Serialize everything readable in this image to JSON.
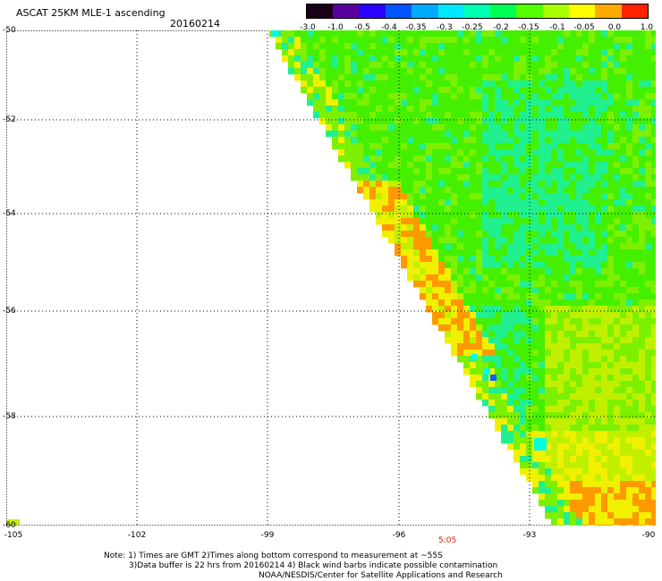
{
  "title": "ASCAT 25KM MLE-1 ascending",
  "date": "20160214",
  "colorbar": {
    "labels": [
      "-3.0",
      "-1.0",
      "-0.5",
      "-0.4",
      "-0.35",
      "-0.3",
      "-0.25",
      "-0.2",
      "-0.15",
      "-0.1",
      "-0.05",
      "0.0",
      "1.0"
    ],
    "colors": [
      "#1a0016",
      "#5a00a0",
      "#2a00ff",
      "#0055ff",
      "#00aaff",
      "#00e8ff",
      "#00ffb0",
      "#00ff55",
      "#55ff00",
      "#aaff00",
      "#ffff00",
      "#ffaa00",
      "#ff2200"
    ]
  },
  "map": {
    "lat_labels": [
      "-50",
      "-52",
      "-54",
      "-56",
      "-58",
      "-60"
    ],
    "lon_labels": [
      "-105",
      "-102",
      "-99",
      "-96",
      "-93",
      "-90"
    ],
    "time_label": "5:05",
    "field_colors": {
      "green": "#44f000",
      "lightgreen": "#7cf000",
      "cyangreen": "#20f090",
      "yellowgreen": "#c0f000",
      "yellow": "#f0f000",
      "orange": "#ff9900",
      "cyan": "#00ffe0",
      "blue": "#1060ff"
    }
  },
  "notes": [
    "Note: 1) Times are GMT 2)Times along bottom correspond to measurement at ~55S",
    "3)Data buffer is 22 hrs from 20160214 4) Black wind barbs indicate possible contamination",
    "NOAA/NESDIS/Center for Satellite Applications and Research"
  ]
}
